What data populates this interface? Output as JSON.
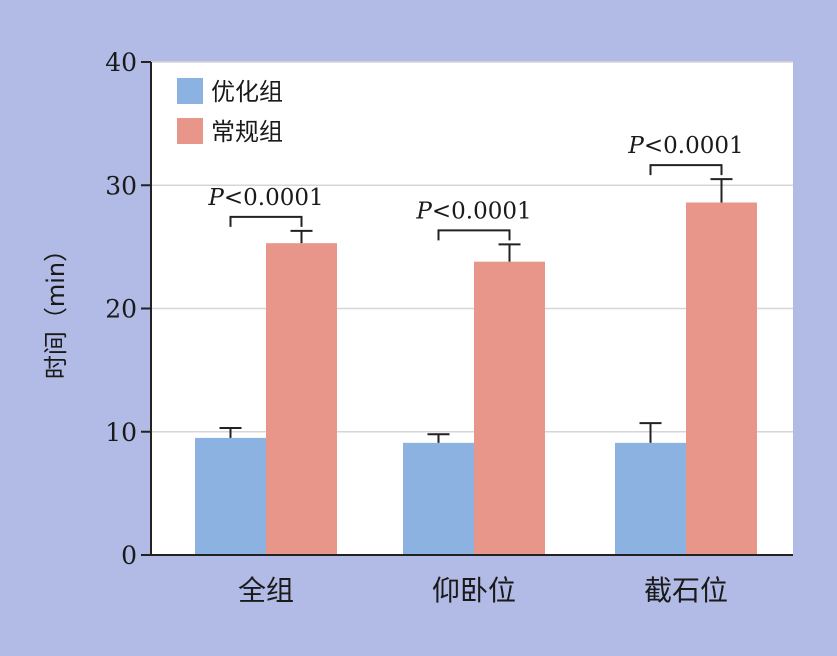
{
  "chart_data": {
    "type": "bar",
    "categories": [
      "全组",
      "仰卧位",
      "截石位"
    ],
    "series": [
      {
        "name": "优化组",
        "values": [
          9.5,
          9.1,
          9.1
        ],
        "errors": [
          0.8,
          0.7,
          1.6
        ],
        "color": "#8bb2e0"
      },
      {
        "name": "常规组",
        "values": [
          25.3,
          23.8,
          28.6
        ],
        "errors": [
          1.0,
          1.4,
          1.9
        ],
        "color": "#e8968a"
      }
    ],
    "significance": [
      {
        "category": "全组",
        "label_p": "P",
        "label_rest": "<0.0001"
      },
      {
        "category": "仰卧位",
        "label_p": "P",
        "label_rest": "<0.0001"
      },
      {
        "category": "截石位",
        "label_p": "P",
        "label_rest": "<0.0001"
      }
    ],
    "ylabel": "时间（min）",
    "xlabel": "",
    "ylim": [
      0,
      40
    ],
    "yticks": [
      0,
      10,
      20,
      30,
      40
    ],
    "grid": true,
    "legend_position": "top-left"
  },
  "colors": {
    "frame": "#b1bbe5",
    "plot_background": "#ffffff",
    "gridline": "#d6d6d6"
  }
}
